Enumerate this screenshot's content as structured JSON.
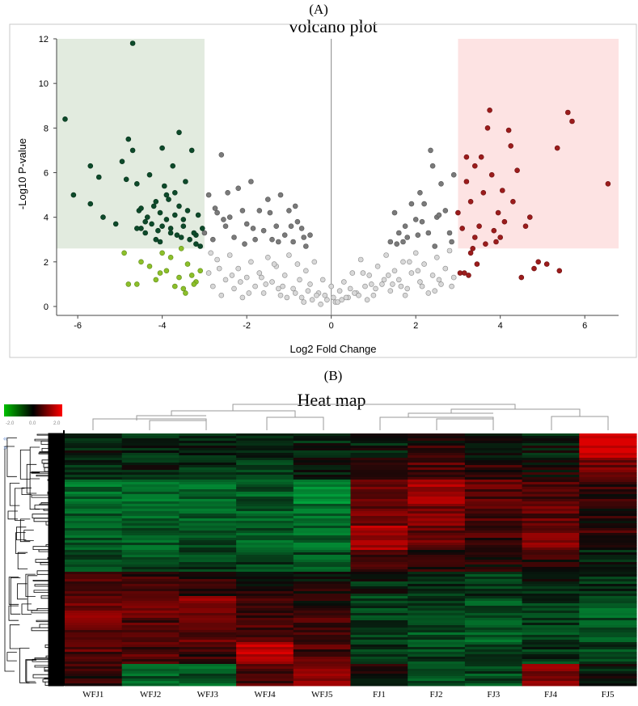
{
  "panel_a": {
    "label": "(A)",
    "title": "volcano plot",
    "colors": {
      "down_region": "#e2ebdf",
      "up_region": "#fde3e3",
      "down_sig": "#0d4a2a",
      "down_weak": "#8cbf2a",
      "up_sig": "#9b1c1c",
      "nonsig_high": "#7a7a7a",
      "nonsig_low": "#d8d8d8"
    }
  },
  "panel_b": {
    "label": "(B)",
    "title": "Heat map",
    "legend_ticks": [
      "-2.0",
      "0.0",
      "2.0"
    ],
    "colors": {
      "low": "#00c000",
      "mid": "#000000",
      "high": "#ff0000"
    }
  },
  "chart_data": [
    {
      "type": "scatter",
      "title": "volcano plot",
      "xlabel": "Log2 Fold Change",
      "ylabel": "-Log10 P-value",
      "xlim": [
        -6.5,
        6.8
      ],
      "ylim": [
        -0.4,
        12
      ],
      "xticks": [
        -6,
        -4,
        -2,
        0,
        2,
        4,
        6
      ],
      "yticks": [
        0,
        2,
        4,
        6,
        8,
        10,
        12
      ],
      "thresholds": {
        "log2fc_down": -3,
        "log2fc_up": 3,
        "neg_log10_p": 2.6
      },
      "grid": false,
      "series": [
        {
          "x": [
            -6.3,
            -6.1,
            -5.7,
            -5.7,
            -5.5,
            -5.4,
            -5.1,
            -4.95,
            -4.85,
            -4.8,
            -4.7,
            -4.6,
            -4.55,
            -4.5,
            -4.4,
            -4.3,
            -4.2,
            -4.15,
            -4.1,
            -4.05,
            -4.0,
            -3.9,
            -3.85,
            -3.8,
            -3.75,
            -3.7,
            -3.6,
            -3.55,
            -3.5,
            -3.45,
            -3.4,
            -3.3,
            -3.2,
            -3.15,
            -3.1,
            -3.05,
            -4.6,
            -4.35,
            -4.0,
            -3.6,
            -3.35,
            -3.7,
            -3.9,
            -4.15,
            -4.4,
            -3.2,
            -3.5,
            -3.8,
            -4.05,
            -4.25,
            -4.5,
            -3.65,
            -3.25,
            -3.95,
            -4.7
          ],
          "y": [
            8.4,
            5.0,
            6.3,
            4.6,
            5.8,
            4.0,
            3.7,
            6.5,
            5.7,
            7.5,
            7.0,
            5.5,
            4.3,
            3.5,
            3.8,
            5.9,
            4.5,
            4.7,
            3.4,
            4.2,
            7.1,
            5.0,
            4.8,
            3.3,
            6.3,
            5.1,
            7.8,
            3.1,
            3.6,
            5.6,
            4.3,
            7.0,
            3.2,
            4.1,
            2.7,
            3.5,
            3.5,
            4.0,
            3.6,
            4.5,
            3.0,
            4.1,
            3.9,
            3.0,
            3.3,
            2.8,
            3.9,
            3.5,
            2.9,
            3.7,
            4.4,
            3.2,
            3.3,
            5.4,
            11.8
          ]
        },
        {
          "x": [
            -4.9,
            -4.8,
            -4.6,
            -4.5,
            -4.3,
            -4.15,
            -4.0,
            -3.9,
            -3.7,
            -3.6,
            -3.5,
            -3.4,
            -3.3,
            -3.2,
            -3.1,
            -3.8,
            -3.55,
            -3.25,
            -4.05,
            -3.45
          ],
          "y": [
            2.4,
            1.0,
            1.0,
            2.0,
            1.8,
            1.2,
            2.4,
            1.6,
            0.9,
            1.3,
            0.8,
            1.9,
            1.4,
            1.1,
            1.6,
            2.2,
            2.6,
            1.0,
            1.5,
            0.6
          ]
        },
        {
          "x": [
            3.0,
            3.05,
            3.1,
            3.2,
            3.25,
            3.3,
            3.35,
            3.4,
            3.45,
            3.5,
            3.55,
            3.6,
            3.65,
            3.7,
            3.8,
            3.85,
            3.9,
            3.95,
            4.0,
            4.05,
            4.1,
            4.2,
            4.25,
            4.4,
            4.5,
            4.6,
            4.7,
            4.9,
            5.1,
            5.35,
            5.6,
            5.7,
            6.55,
            3.15,
            3.4,
            3.75,
            4.3,
            3.2,
            3.3,
            4.8,
            5.4
          ],
          "y": [
            4.2,
            1.5,
            3.5,
            5.6,
            1.4,
            4.7,
            2.6,
            6.3,
            1.9,
            3.6,
            6.7,
            5.1,
            2.8,
            8.0,
            5.9,
            3.4,
            2.9,
            4.2,
            3.1,
            5.2,
            3.8,
            7.9,
            7.2,
            6.1,
            1.3,
            3.6,
            4.0,
            2.0,
            1.9,
            7.1,
            8.7,
            8.3,
            5.5,
            1.5,
            3.1,
            8.8,
            4.7,
            6.7,
            2.4,
            1.7,
            1.6
          ]
        },
        {
          "x": [
            -3.0,
            -2.9,
            -2.8,
            -2.7,
            -2.6,
            -2.5,
            -2.4,
            -2.3,
            -2.2,
            -2.1,
            -2.0,
            -1.9,
            -1.8,
            -1.7,
            -1.6,
            -1.5,
            -1.4,
            -1.3,
            -1.2,
            -1.1,
            -1.0,
            -0.9,
            -0.8,
            -0.7,
            -0.6,
            -0.5,
            -2.75,
            -2.55,
            -2.45,
            -2.05,
            -1.85,
            -1.45,
            -1.25,
            -0.95,
            -0.85,
            -0.65,
            1.4,
            1.5,
            1.6,
            1.7,
            1.8,
            1.9,
            2.0,
            2.1,
            2.2,
            2.3,
            2.4,
            2.5,
            2.6,
            2.7,
            2.8,
            2.9,
            1.55,
            1.75,
            2.05,
            2.35,
            2.55,
            2.85,
            2.15,
            2.45
          ],
          "y": [
            3.3,
            5.0,
            3.0,
            4.2,
            6.8,
            3.6,
            4.0,
            3.1,
            5.3,
            4.3,
            3.7,
            5.6,
            3.0,
            4.3,
            3.4,
            4.8,
            3.0,
            3.6,
            5.0,
            3.2,
            4.3,
            2.9,
            3.8,
            3.5,
            2.7,
            3.2,
            4.4,
            3.9,
            5.1,
            2.8,
            3.5,
            4.2,
            2.9,
            3.6,
            4.5,
            3.1,
            2.9,
            4.2,
            3.3,
            2.9,
            3.1,
            4.6,
            3.9,
            5.1,
            4.6,
            3.3,
            6.3,
            4.0,
            5.5,
            4.3,
            3.3,
            5.9,
            2.8,
            3.6,
            3.2,
            7.0,
            4.1,
            2.9,
            3.8,
            2.7
          ]
        },
        {
          "x": [
            -2.9,
            -2.8,
            -2.7,
            -2.6,
            -2.5,
            -2.4,
            -2.3,
            -2.2,
            -2.1,
            -2.0,
            -1.9,
            -1.8,
            -1.7,
            -1.6,
            -1.5,
            -1.4,
            -1.3,
            -1.2,
            -1.1,
            -1.0,
            -0.9,
            -0.8,
            -0.7,
            -0.6,
            -0.5,
            -0.4,
            -0.3,
            -0.2,
            -0.1,
            0.0,
            0.1,
            0.2,
            0.3,
            0.4,
            0.5,
            0.6,
            0.7,
            0.8,
            0.9,
            1.0,
            1.1,
            1.2,
            1.3,
            1.4,
            1.5,
            1.6,
            1.7,
            1.8,
            1.9,
            2.0,
            2.1,
            2.2,
            2.3,
            2.4,
            2.5,
            2.6,
            2.7,
            2.8,
            2.9,
            -2.85,
            -2.35,
            -1.95,
            -1.55,
            -1.15,
            -0.75,
            -0.35,
            0.05,
            0.45,
            0.85,
            1.25,
            1.65,
            2.05,
            2.45,
            2.85,
            -2.65,
            -2.15,
            -1.65,
            -1.25,
            -0.85,
            -0.45,
            -0.15,
            0.15,
            0.55,
            0.95,
            1.35,
            1.75,
            2.15,
            2.55,
            -1.05,
            -0.55,
            -0.25,
            0.25,
            0.65,
            1.05,
            -1.35,
            -0.65,
            0.35,
            0.75,
            1.45,
            1.85
          ],
          "y": [
            1.5,
            0.9,
            2.1,
            0.5,
            1.2,
            2.3,
            0.8,
            1.7,
            0.4,
            1.3,
            2.0,
            0.9,
            1.5,
            0.6,
            2.2,
            1.1,
            1.8,
            0.5,
            1.4,
            2.3,
            0.8,
            1.9,
            0.4,
            1.6,
            1.0,
            2.0,
            0.6,
            1.2,
            0.3,
            0.9,
            0.2,
            0.7,
            1.1,
            0.4,
            1.5,
            0.6,
            2.1,
            0.9,
            1.4,
            0.5,
            1.8,
            1.0,
            2.3,
            0.7,
            1.6,
            1.2,
            2.0,
            0.8,
            1.5,
            2.4,
            1.1,
            1.9,
            0.6,
            1.4,
            2.2,
            1.0,
            1.7,
            2.5,
            1.3,
            2.4,
            1.4,
            0.6,
            1.0,
            0.9,
            1.2,
            0.5,
            0.4,
            0.8,
            0.3,
            1.2,
            0.9,
            1.6,
            0.7,
            0.9,
            1.7,
            1.1,
            1.3,
            0.8,
            0.6,
            0.3,
            0.5,
            0.2,
            0.6,
            1.0,
            1.4,
            0.5,
            0.9,
            1.2,
            0.4,
            0.7,
            0.1,
            0.3,
            0.5,
            0.8,
            1.9,
            0.2,
            0.4,
            1.5,
            1.0,
            2.0
          ]
        }
      ]
    },
    {
      "type": "heatmap",
      "title": "Heat map",
      "x": [
        "WFJ1",
        "WFJ2",
        "WFJ3",
        "WFJ4",
        "WFJ5",
        "FJ1",
        "FJ2",
        "FJ3",
        "FJ4",
        "FJ5"
      ],
      "color_scale": {
        "min": -2.0,
        "mid": 0.0,
        "max": 2.0
      },
      "block_values": [
        [
          -0.2,
          -0.3,
          -0.3,
          -0.2,
          -0.3,
          -0.2,
          0.3,
          0.0,
          -0.2,
          2.0
        ],
        [
          -0.3,
          -0.2,
          -0.4,
          -0.4,
          -0.2,
          0.5,
          0.6,
          0.3,
          0.2,
          0.9
        ],
        [
          -1.1,
          -1.0,
          -1.0,
          -0.9,
          -1.3,
          1.0,
          1.4,
          0.7,
          0.5,
          0.4
        ],
        [
          -1.0,
          -0.9,
          -0.9,
          -0.9,
          -1.2,
          0.9,
          1.0,
          0.6,
          0.8,
          0.3
        ],
        [
          -0.9,
          -0.9,
          -0.8,
          -0.9,
          -1.0,
          1.5,
          0.9,
          0.5,
          1.1,
          0.4
        ],
        [
          -0.6,
          -0.7,
          -0.6,
          -0.6,
          -0.8,
          0.4,
          0.3,
          0.2,
          0.3,
          -0.3
        ],
        [
          0.5,
          0.4,
          0.3,
          0.2,
          0.1,
          -0.3,
          -0.4,
          -0.5,
          -0.2,
          -0.5
        ],
        [
          1.0,
          0.8,
          1.1,
          0.4,
          0.3,
          -0.6,
          -0.6,
          -0.8,
          -0.5,
          -0.9
        ],
        [
          0.9,
          0.6,
          0.8,
          0.6,
          0.5,
          -0.5,
          -0.8,
          -0.9,
          -0.6,
          -0.8
        ],
        [
          0.7,
          0.6,
          0.4,
          1.8,
          0.6,
          -0.4,
          -0.6,
          -0.7,
          -0.5,
          -0.6
        ],
        [
          0.3,
          -0.9,
          -0.9,
          0.7,
          1.2,
          0.1,
          -0.7,
          -0.7,
          1.1,
          -0.2
        ]
      ]
    }
  ]
}
